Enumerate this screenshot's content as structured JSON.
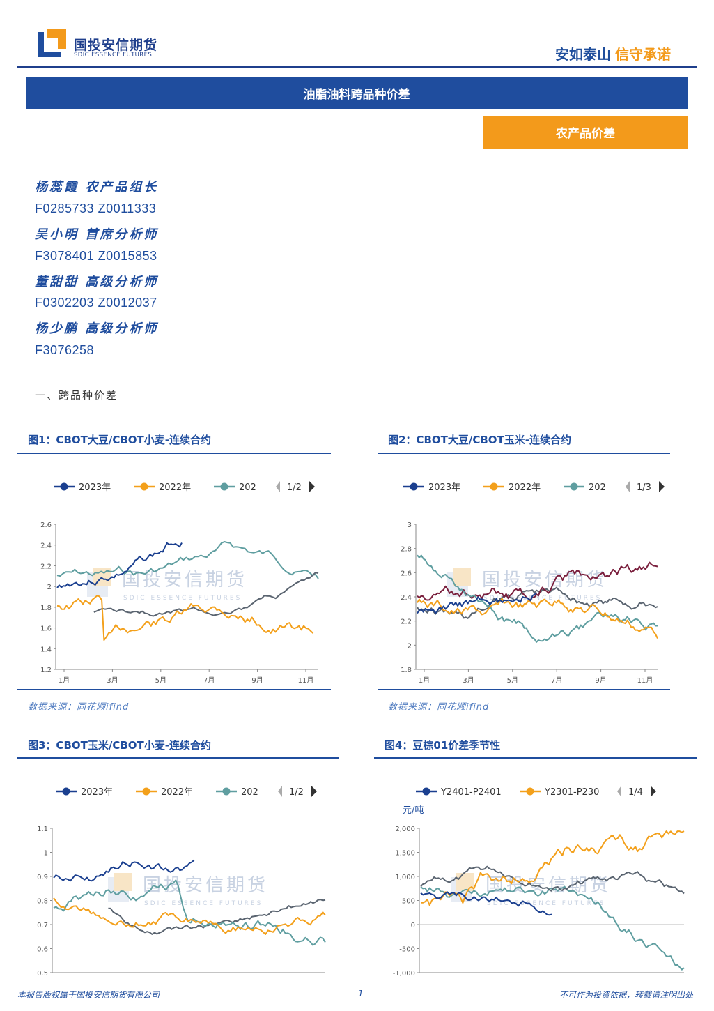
{
  "header": {
    "logo_cn": "国投安信期货",
    "logo_en": "SDIC ESSENCE FUTURES",
    "slogan_part1": "安如泰山",
    "slogan_part2": "信守承诺",
    "brand_blue": "#1f4d9e",
    "brand_orange": "#f39a1b"
  },
  "report": {
    "title": "油脂油料跨品种价差",
    "category": "农产品价差"
  },
  "authors": [
    {
      "name": "杨蕊霞 农产品组长",
      "code": "F0285733 Z0011333"
    },
    {
      "name": "吴小明 首席分析师",
      "code": "F3078401 Z0015853"
    },
    {
      "name": "董甜甜 高级分析师",
      "code": "F0302203 Z0012037"
    },
    {
      "name": "杨少鹏 高级分析师",
      "code": "F3076258"
    }
  ],
  "section_title": "一、跨品种价差",
  "source_text": "数据来源：同花顺ifind",
  "watermark": {
    "cn": "国投安信期货",
    "en": "SDIC ESSENCE FUTURES"
  },
  "charts": [
    {
      "title": "图1：CBOT大豆/CBOT小麦-连续合约",
      "legend": [
        "2023年",
        "2022年",
        "202"
      ],
      "pager": "1/2",
      "yticks": [
        "2.6",
        "2.4",
        "2.2",
        "2",
        "1.8",
        "1.6",
        "1.4",
        "1.2"
      ],
      "xticks": [
        "1月",
        "3月",
        "5月",
        "7月",
        "9月",
        "11月"
      ]
    },
    {
      "title": "图2：CBOT大豆/CBOT玉米-连续合约",
      "legend": [
        "2023年",
        "2022年",
        "202"
      ],
      "pager": "1/3",
      "yticks": [
        "3",
        "2.8",
        "2.6",
        "2.4",
        "2.2",
        "2",
        "1.8"
      ],
      "xticks": [
        "1月",
        "3月",
        "5月",
        "7月",
        "9月",
        "11月"
      ]
    },
    {
      "title": "图3：CBOT玉米/CBOT小麦-连续合约",
      "legend": [
        "2023年",
        "2022年",
        "202"
      ],
      "pager": "1/2",
      "yticks": [
        "1.1",
        "1",
        "0.9",
        "0.8",
        "0.7",
        "0.6",
        "0.5"
      ],
      "xticks": []
    },
    {
      "title": "图4：豆棕01价差季节性",
      "legend": [
        "Y2401-P2401",
        "Y2301-P230"
      ],
      "pager": "1/4",
      "unit": "元/吨",
      "yticks": [
        "2,000",
        "1,500",
        "1,000",
        "500",
        "0",
        "-500",
        "-1,000"
      ],
      "xticks": []
    }
  ],
  "series_colors": {
    "y2023": "#1a3f8f",
    "y2022": "#f3a01b",
    "y2021": "#5f9ea0",
    "grey": "#5a6470",
    "maroon": "#7a1f3d"
  },
  "footer": {
    "left": "本报告版权属于国投安信期货有限公司",
    "page": "1",
    "right": "不可作为投资依据，转载请注明出处"
  }
}
